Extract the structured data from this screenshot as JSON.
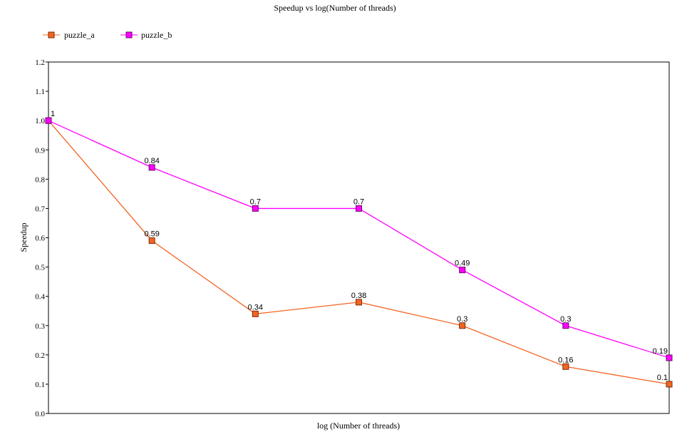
{
  "chart_data": {
    "type": "line",
    "title": "Speedup vs log(Number of threads)",
    "xlabel": "log (Number of threads)",
    "ylabel": "Speedup",
    "ylim": [
      0.0,
      1.2
    ],
    "y_ticks": [
      "0.0",
      "0.1",
      "0.2",
      "0.3",
      "0.4",
      "0.5",
      "0.6",
      "0.7",
      "0.8",
      "0.9",
      "1.0",
      "1.1",
      "1.2"
    ],
    "x": [
      0,
      1,
      2,
      3,
      4,
      5,
      6
    ],
    "grid": false,
    "legend_position": "top-left",
    "series": [
      {
        "name": "puzzle_a",
        "color": "#f26522",
        "marker": "square",
        "values": [
          1.0,
          0.59,
          0.34,
          0.38,
          0.3,
          0.16,
          0.1
        ],
        "labels": [
          "1",
          "0.59",
          "0.34",
          "0.38",
          "0.3",
          "0.16",
          "0.1"
        ]
      },
      {
        "name": "puzzle_b",
        "color": "#ff00ff",
        "marker": "square",
        "values": [
          1.0,
          0.84,
          0.7,
          0.7,
          0.49,
          0.3,
          0.19
        ],
        "labels": [
          "",
          "0.84",
          "0.7",
          "0.7",
          "0.49",
          "0.3",
          "0.19"
        ]
      }
    ]
  }
}
